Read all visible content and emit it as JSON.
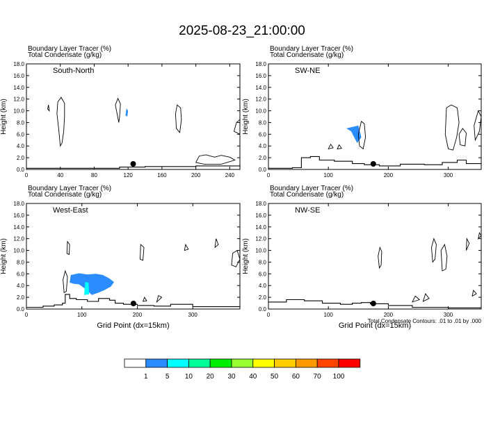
{
  "title": "2025-08-23_21:00:00",
  "panel_labels": {
    "line1": "Boundary Layer Tracer   (%)",
    "line2": "Total Condensate   (g/kg)",
    "ylabel": "Height (km)",
    "xlabel": "Grid Point (dx=15km)",
    "footnote": "Total Condensate Contours: .01 to .01 by .000"
  },
  "colorbar": {
    "colors": [
      "#ffffff",
      "#2a8cff",
      "#00ffff",
      "#00ff99",
      "#00ee00",
      "#99ff33",
      "#ffff00",
      "#ffcc00",
      "#ff9900",
      "#ff4400",
      "#ff0000"
    ],
    "labels": [
      "1",
      "5",
      "10",
      "20",
      "30",
      "40",
      "50",
      "60",
      "70",
      "100"
    ]
  },
  "chart_data": [
    {
      "type": "contour-cross-section",
      "name": "South-North",
      "xlim": [
        0,
        252
      ],
      "xticks": [
        "0",
        "40",
        "80",
        "120",
        "160",
        "200",
        "240"
      ],
      "ylim": [
        0,
        18
      ],
      "yticks": [
        "0.0",
        "2.0",
        "4.0",
        "6.0",
        "8.0",
        "10.0",
        "12.0",
        "14.0",
        "16.0",
        "18.0"
      ],
      "marker_x": 126,
      "terrain": [
        [
          0,
          0.2
        ],
        [
          30,
          0.2
        ],
        [
          70,
          0.2
        ],
        [
          110,
          0.4
        ],
        [
          140,
          0.5
        ],
        [
          180,
          0.5
        ],
        [
          200,
          0.6
        ],
        [
          252,
          0.8
        ]
      ],
      "condensate": [
        [
          [
            40,
            4.0
          ],
          [
            38,
            7.0
          ],
          [
            36,
            9.5
          ],
          [
            37,
            11.5
          ],
          [
            41,
            12.3
          ],
          [
            45,
            11.3
          ],
          [
            45,
            9.0
          ],
          [
            44,
            6.5
          ],
          [
            42,
            4.5
          ]
        ],
        [
          [
            107,
            9.5
          ],
          [
            105,
            11.0
          ],
          [
            108,
            12.1
          ],
          [
            111,
            11.2
          ],
          [
            110,
            9.0
          ],
          [
            109,
            8.0
          ]
        ],
        [
          [
            177,
            7.0
          ],
          [
            176,
            9.5
          ],
          [
            178,
            11.0
          ],
          [
            182,
            10.5
          ],
          [
            183,
            8.5
          ],
          [
            181,
            6.3
          ]
        ],
        [
          [
            200,
            1.2
          ],
          [
            204,
            2.3
          ],
          [
            212,
            2.5
          ],
          [
            222,
            2.1
          ],
          [
            230,
            2.4
          ],
          [
            240,
            2.1
          ],
          [
            246,
            1.6
          ],
          [
            230,
            0.9
          ],
          [
            210,
            0.9
          ]
        ],
        [
          [
            245,
            6.5
          ],
          [
            248,
            8.0
          ],
          [
            252,
            8.5
          ],
          [
            252,
            6.0
          ]
        ],
        [
          [
            25,
            10.3
          ],
          [
            26,
            11.0
          ],
          [
            27,
            10.0
          ]
        ]
      ],
      "tracer_fill": [
        {
          "level": "5",
          "poly": [
            [
              117,
              9.2
            ],
            [
              118,
              10.4
            ],
            [
              120,
              10.0
            ],
            [
              119,
              9.0
            ]
          ]
        }
      ]
    },
    {
      "type": "contour-cross-section",
      "name": "SW-NE",
      "xlim": [
        0,
        355
      ],
      "xticks": [
        "0",
        "100",
        "200",
        "300"
      ],
      "ylim": [
        0,
        18
      ],
      "yticks": [
        "0.0",
        "2.0",
        "4.0",
        "6.0",
        "8.0",
        "10.0",
        "12.0",
        "14.0",
        "16.0",
        "18.0"
      ],
      "marker_x": 175,
      "terrain": [
        [
          0,
          0.2
        ],
        [
          40,
          0.3
        ],
        [
          55,
          2.0
        ],
        [
          70,
          2.2
        ],
        [
          85,
          1.6
        ],
        [
          110,
          1.4
        ],
        [
          140,
          1.0
        ],
        [
          160,
          0.8
        ],
        [
          185,
          0.6
        ],
        [
          220,
          0.9
        ],
        [
          260,
          0.8
        ],
        [
          290,
          1.2
        ],
        [
          315,
          1.6
        ],
        [
          330,
          1.0
        ],
        [
          355,
          0.6
        ]
      ],
      "condensate": [
        [
          [
            152,
            4.0
          ],
          [
            150,
            6.0
          ],
          [
            155,
            8.2
          ],
          [
            160,
            7.8
          ],
          [
            162,
            5.5
          ],
          [
            158,
            3.5
          ]
        ],
        [
          [
            300,
            3.5
          ],
          [
            295,
            6.0
          ],
          [
            297,
            10.5
          ],
          [
            305,
            11.0
          ],
          [
            315,
            10.5
          ],
          [
            318,
            8.0
          ],
          [
            314,
            5.5
          ],
          [
            308,
            3.3
          ]
        ],
        [
          [
            320,
            4.2
          ],
          [
            318,
            6.0
          ],
          [
            324,
            7.0
          ],
          [
            330,
            6.2
          ],
          [
            328,
            4.0
          ]
        ],
        [
          [
            345,
            5.0
          ],
          [
            343,
            7.5
          ],
          [
            350,
            10.0
          ],
          [
            355,
            9.0
          ],
          [
            352,
            6.5
          ]
        ],
        [
          [
            100,
            3.5
          ],
          [
            104,
            4.3
          ],
          [
            108,
            3.7
          ]
        ],
        [
          [
            115,
            3.5
          ],
          [
            118,
            4.2
          ],
          [
            122,
            3.6
          ]
        ]
      ],
      "tracer_fill": [
        {
          "level": "5",
          "poly": [
            [
              130,
              7.0
            ],
            [
              150,
              7.5
            ],
            [
              155,
              5.5
            ],
            [
              148,
              4.5
            ],
            [
              138,
              6.5
            ]
          ]
        }
      ]
    },
    {
      "type": "contour-cross-section",
      "name": "West-East",
      "xlim": [
        0,
        385
      ],
      "xticks": [
        "0",
        "100",
        "200",
        "300"
      ],
      "ylim": [
        0,
        18
      ],
      "yticks": [
        "0.0",
        "2.0",
        "4.0",
        "6.0",
        "8.0",
        "10.0",
        "12.0",
        "14.0",
        "16.0",
        "18.0"
      ],
      "marker_x": 193,
      "terrain": [
        [
          0,
          0.3
        ],
        [
          30,
          0.5
        ],
        [
          50,
          0.7
        ],
        [
          65,
          1.0
        ],
        [
          70,
          2.5
        ],
        [
          78,
          1.8
        ],
        [
          90,
          1.6
        ],
        [
          110,
          1.3
        ],
        [
          130,
          1.8
        ],
        [
          150,
          1.5
        ],
        [
          160,
          1.0
        ],
        [
          175,
          0.8
        ],
        [
          200,
          0.6
        ],
        [
          230,
          0.5
        ],
        [
          260,
          0.8
        ],
        [
          300,
          0.4
        ],
        [
          385,
          0.3
        ]
      ],
      "condensate": [
        [
          [
            68,
            2.8
          ],
          [
            66,
            5.0
          ],
          [
            70,
            6.5
          ],
          [
            74,
            5.5
          ],
          [
            72,
            3.0
          ]
        ],
        [
          [
            73,
            9.5
          ],
          [
            74,
            11.5
          ],
          [
            78,
            11.0
          ],
          [
            77,
            9.3
          ]
        ],
        [
          [
            205,
            8.5
          ],
          [
            206,
            11.0
          ],
          [
            212,
            10.5
          ],
          [
            210,
            8.3
          ]
        ],
        [
          [
            285,
            10.0
          ],
          [
            287,
            11.0
          ],
          [
            292,
            10.2
          ]
        ],
        [
          [
            340,
            10.5
          ],
          [
            342,
            12.0
          ],
          [
            346,
            11.0
          ]
        ],
        [
          [
            370,
            7.5
          ],
          [
            372,
            9.5
          ],
          [
            380,
            10.0
          ],
          [
            385,
            8.5
          ],
          [
            378,
            7.2
          ]
        ],
        [
          [
            235,
            1.2
          ],
          [
            238,
            2.3
          ],
          [
            244,
            2.0
          ]
        ],
        [
          [
            210,
            1.3
          ],
          [
            213,
            2.0
          ],
          [
            217,
            1.4
          ]
        ]
      ],
      "tracer_fill": [
        {
          "level": "5",
          "poly": [
            [
              78,
              4.5
            ],
            [
              80,
              5.8
            ],
            [
              95,
              6.1
            ],
            [
              110,
              5.9
            ],
            [
              125,
              6.0
            ],
            [
              138,
              5.8
            ],
            [
              150,
              5.2
            ],
            [
              158,
              4.6
            ],
            [
              152,
              3.8
            ],
            [
              140,
              3.2
            ],
            [
              130,
              2.8
            ],
            [
              118,
              2.4
            ],
            [
              105,
              3.5
            ],
            [
              95,
              4.2
            ],
            [
              86,
              4.3
            ]
          ]
        },
        {
          "level": "10",
          "poly": [
            [
              104,
              2.4
            ],
            [
              106,
              4.6
            ],
            [
              112,
              4.5
            ],
            [
              113,
              2.5
            ]
          ]
        }
      ]
    },
    {
      "type": "contour-cross-section",
      "name": "NW-SE",
      "xlim": [
        0,
        355
      ],
      "xticks": [
        "0",
        "100",
        "200",
        "300"
      ],
      "ylim": [
        0,
        18
      ],
      "yticks": [
        "0.0",
        "2.0",
        "4.0",
        "6.0",
        "8.0",
        "10.0",
        "12.0",
        "14.0",
        "16.0",
        "18.0"
      ],
      "marker_x": 175,
      "terrain": [
        [
          0,
          1.2
        ],
        [
          30,
          1.6
        ],
        [
          60,
          1.4
        ],
        [
          90,
          1.0
        ],
        [
          120,
          0.8
        ],
        [
          140,
          1.0
        ],
        [
          155,
          1.1
        ],
        [
          170,
          0.9
        ],
        [
          200,
          0.6
        ],
        [
          240,
          0.3
        ],
        [
          300,
          0.2
        ],
        [
          355,
          0.2
        ]
      ],
      "condensate": [
        [
          [
            185,
            7.0
          ],
          [
            183,
            9.0
          ],
          [
            186,
            10.5
          ],
          [
            189,
            9.8
          ],
          [
            188,
            7.5
          ]
        ],
        [
          [
            274,
            8.0
          ],
          [
            272,
            10.5
          ],
          [
            276,
            12.0
          ],
          [
            280,
            11.0
          ],
          [
            278,
            8.5
          ]
        ],
        [
          [
            290,
            6.5
          ],
          [
            288,
            10.0
          ],
          [
            294,
            11.0
          ],
          [
            298,
            9.0
          ],
          [
            296,
            6.8
          ]
        ],
        [
          [
            330,
            10.0
          ],
          [
            331,
            12.0
          ],
          [
            335,
            11.2
          ]
        ],
        [
          [
            350,
            12.0
          ],
          [
            352,
            13.0
          ],
          [
            355,
            12.5
          ]
        ],
        [
          [
            340,
            2.2
          ],
          [
            342,
            3.2
          ],
          [
            347,
            2.6
          ]
        ],
        [
          [
            240,
            1.2
          ],
          [
            245,
            2.2
          ],
          [
            252,
            1.6
          ]
        ],
        [
          [
            258,
            1.3
          ],
          [
            262,
            2.6
          ],
          [
            268,
            1.8
          ]
        ]
      ],
      "tracer_fill": []
    }
  ]
}
